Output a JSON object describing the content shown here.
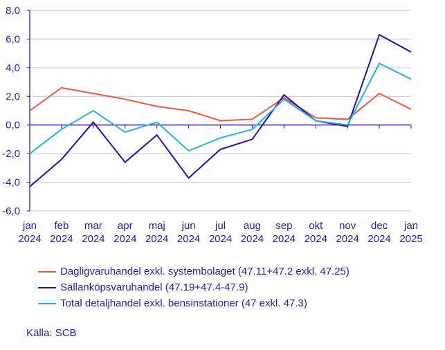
{
  "chart_data": {
    "type": "line",
    "categories": [
      [
        "jan",
        "2024"
      ],
      [
        "feb",
        "2024"
      ],
      [
        "mar",
        "2024"
      ],
      [
        "apr",
        "2024"
      ],
      [
        "maj",
        "2024"
      ],
      [
        "jun",
        "2024"
      ],
      [
        "jul",
        "2024"
      ],
      [
        "aug",
        "2024"
      ],
      [
        "sep",
        "2024"
      ],
      [
        "okt",
        "2024"
      ],
      [
        "nov",
        "2024"
      ],
      [
        "dec",
        "2024"
      ],
      [
        "jan",
        "2025"
      ]
    ],
    "yticks": [
      "8,0",
      "6,0",
      "4,0",
      "2,0",
      "0,0",
      "-2,0",
      "-4,0",
      "-6,0"
    ],
    "ylim": [
      -6,
      8
    ],
    "grid": true,
    "legend_position": "bottom",
    "series": [
      {
        "name": "Dagligvaruhandel exkl. systembolaget (47.11+47.2 exkl. 47.25)",
        "color": "#f0583c",
        "values": [
          1.0,
          2.6,
          2.2,
          1.8,
          1.3,
          1.0,
          0.3,
          0.4,
          1.9,
          0.5,
          0.4,
          2.2,
          1.1
        ]
      },
      {
        "name": "Sällanköpsvaruhandel (47.19+47.4-47.9)",
        "color": "#2a0aa8",
        "values": [
          -4.3,
          -2.4,
          0.2,
          -2.6,
          -0.7,
          -3.7,
          -1.7,
          -1.0,
          2.1,
          0.3,
          -0.1,
          6.3,
          5.1
        ]
      },
      {
        "name": "Total detaljhandel exkl. bensinstationer (47 exkl. 47.3)",
        "color": "#1eb4e8",
        "values": [
          -2.0,
          -0.3,
          1.0,
          -0.5,
          0.2,
          -1.8,
          -0.9,
          -0.3,
          1.8,
          0.3,
          0.0,
          4.3,
          3.2
        ]
      }
    ]
  },
  "source": "Källa: SCB"
}
